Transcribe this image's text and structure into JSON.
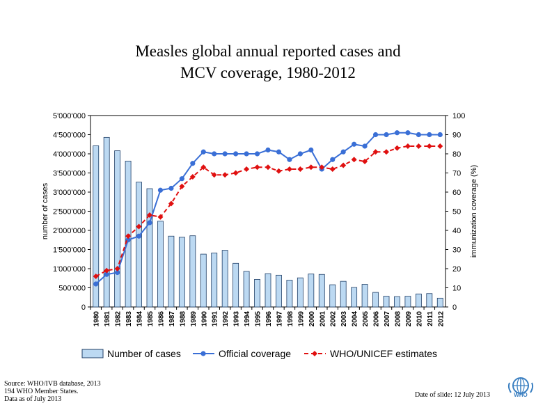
{
  "title_line1": "Measles global annual reported cases and",
  "title_line2": "MCV coverage, 1980-2012",
  "footer": {
    "source_line1": "Source:  WHO/IVB database,  2013",
    "source_line2": "194 WHO Member States.",
    "source_line3": "Data as of July 2013",
    "date_of_slide": "Date of slide:  12 July 2013"
  },
  "logo": {
    "text": "WHO",
    "icon": "who-emblem-icon"
  },
  "colors": {
    "bar_fill": "#bcd9f2",
    "bar_stroke": "#1f3e66",
    "official": "#3a6fd6",
    "estimates": "#e01010"
  },
  "chart_data": {
    "type": "bar",
    "xlabel": "",
    "ylabel": "number of cases",
    "y2label": "immunization coverage (%)",
    "categories": [
      "1980",
      "1981",
      "1982",
      "1983",
      "1984",
      "1985",
      "1986",
      "1987",
      "1988",
      "1989",
      "1990",
      "1991",
      "1992",
      "1993",
      "1994",
      "1995",
      "1996",
      "1997",
      "1998",
      "1999",
      "2000",
      "2001",
      "2002",
      "2003",
      "2004",
      "2005",
      "2006",
      "2007",
      "2008",
      "2009",
      "2010",
      "2011",
      "2012"
    ],
    "ylim": [
      0,
      5000000
    ],
    "y2lim": [
      0,
      100
    ],
    "y_ticks": [
      "0",
      "500'000",
      "1'000'000",
      "1'500'000",
      "2'000'000",
      "2'500'000",
      "3'000'000",
      "3'500'000",
      "4'000'000",
      "4'500'000",
      "5'000'000"
    ],
    "y2_ticks": [
      "0",
      "10",
      "20",
      "30",
      "40",
      "50",
      "60",
      "70",
      "80",
      "90",
      "100"
    ],
    "legend_position": "bottom",
    "series": [
      {
        "name": "Number of cases",
        "kind": "bar",
        "axis": "left",
        "values": [
          4210000,
          4430000,
          4080000,
          3810000,
          3260000,
          3090000,
          2240000,
          1850000,
          1820000,
          1860000,
          1380000,
          1410000,
          1480000,
          1140000,
          930000,
          720000,
          870000,
          830000,
          700000,
          760000,
          860000,
          850000,
          580000,
          670000,
          510000,
          590000,
          380000,
          280000,
          270000,
          280000,
          340000,
          350000,
          230000
        ]
      },
      {
        "name": "Official coverage",
        "kind": "line",
        "axis": "right",
        "values": [
          12,
          17,
          18,
          35,
          37,
          44,
          61,
          62,
          67,
          75,
          81,
          80,
          80,
          80,
          80,
          80,
          82,
          81,
          77,
          80,
          82,
          72,
          77,
          81,
          85,
          84,
          90,
          90,
          91,
          91,
          90,
          90,
          90
        ]
      },
      {
        "name": "WHO/UNICEF estimates",
        "kind": "line",
        "axis": "right",
        "values": [
          16,
          19,
          20,
          37,
          42,
          48,
          47,
          54,
          63,
          68,
          73,
          69,
          69,
          70,
          72,
          73,
          73,
          71,
          72,
          72,
          73,
          73,
          72,
          74,
          77,
          76,
          81,
          81,
          83,
          84,
          84,
          84,
          84
        ]
      }
    ]
  }
}
